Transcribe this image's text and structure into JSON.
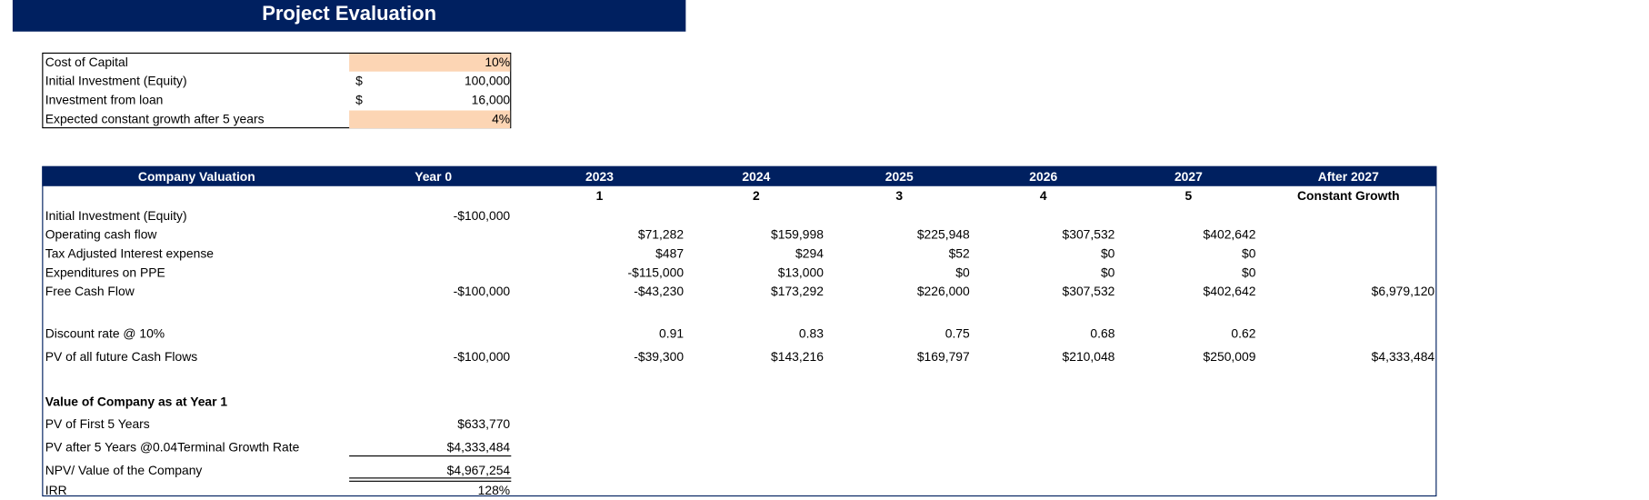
{
  "header": {
    "title": "Project Evaluation"
  },
  "inputs": [
    {
      "label": "Cost of Capital",
      "value": "10%",
      "highlight": true
    },
    {
      "label": "Initial Investment (Equity)",
      "unit": "$",
      "value": "100,000"
    },
    {
      "label": "Investment from loan",
      "unit": "$",
      "value": "16,000"
    },
    {
      "label": "Expected constant growth after 5 years",
      "value": "4%",
      "highlight": true
    }
  ],
  "valuation": {
    "headers": [
      "Company Valuation",
      "Year 0",
      "2023",
      "2024",
      "2025",
      "2026",
      "2027",
      "After 2027"
    ],
    "subheaders": [
      null,
      null,
      "1",
      "2",
      "3",
      "4",
      "5",
      "Constant Growth"
    ],
    "rows": [
      {
        "label": "Initial Investment (Equity)",
        "cells": [
          "-$100,000",
          null,
          null,
          null,
          null,
          null,
          null
        ]
      },
      {
        "label": "Operating cash flow",
        "cells": [
          null,
          "$71,282",
          "$159,998",
          "$225,948",
          "$307,532",
          "$402,642",
          null
        ]
      },
      {
        "label": "Tax Adjusted Interest expense",
        "cells": [
          null,
          "$487",
          "$294",
          "$52",
          "$0",
          "$0",
          null
        ]
      },
      {
        "label": "Expenditures on PPE",
        "cells": [
          null,
          "-$115,000",
          "$13,000",
          "$0",
          "$0",
          "$0",
          null
        ]
      },
      {
        "label": "Free Cash Flow",
        "cells": [
          "-$100,000",
          "-$43,230",
          "$173,292",
          "$226,000",
          "$307,532",
          "$402,642",
          "$6,979,120"
        ]
      },
      {
        "label": "Discount rate @ 10%",
        "cells": [
          null,
          "0.91",
          "0.83",
          "0.75",
          "0.68",
          "0.62",
          null
        ]
      },
      {
        "label": "PV of all future Cash Flows",
        "cells": [
          "-$100,000",
          "-$39,300",
          "$143,216",
          "$169,797",
          "$210,048",
          "$250,009",
          "$4,333,484"
        ]
      }
    ],
    "summary": {
      "title": "Value of Company as at Year 1",
      "items": [
        {
          "label": "PV of First 5 Years",
          "value": "$633,770"
        },
        {
          "label": "PV after 5 Years @0.04Terminal Growth Rate",
          "value": "$4,333,484"
        },
        {
          "label": "NPV/ Value of the Company",
          "value": "$4,967,254"
        },
        {
          "label": "IRR",
          "value": "128%"
        }
      ]
    }
  }
}
